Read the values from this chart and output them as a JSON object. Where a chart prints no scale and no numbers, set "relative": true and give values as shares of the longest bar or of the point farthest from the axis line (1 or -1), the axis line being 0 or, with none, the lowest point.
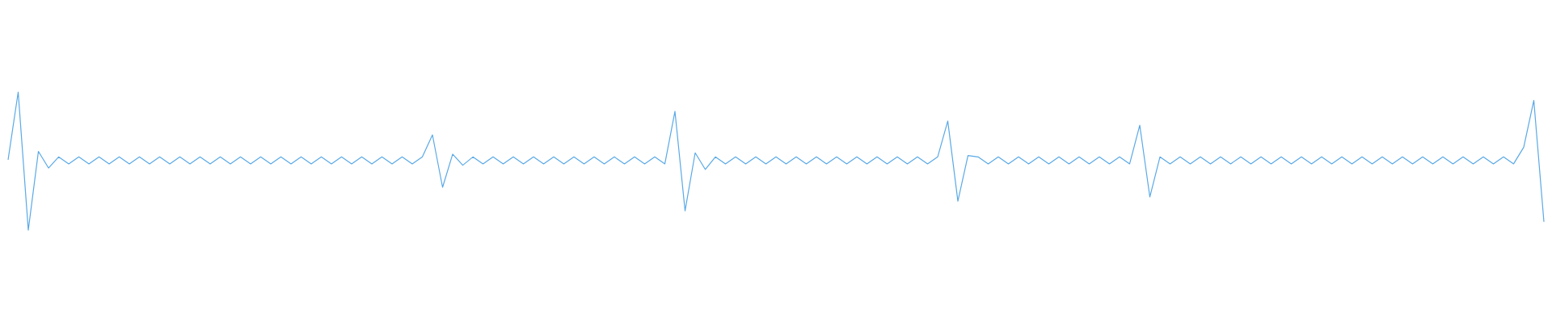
{
  "chart_data": {
    "type": "line",
    "relative": true,
    "color": "#5aa9e6",
    "categories": [
      null,
      null,
      null,
      null,
      null,
      null,
      null,
      null,
      null,
      null,
      null,
      null,
      null,
      null,
      null,
      null,
      null,
      null,
      null,
      null,
      null,
      null,
      null,
      null,
      null,
      null,
      null,
      null,
      null,
      null,
      null,
      null,
      null,
      null,
      null,
      null,
      null,
      null,
      null,
      null,
      null,
      null,
      null,
      null,
      null,
      null,
      null,
      null,
      null,
      null,
      null,
      null,
      null,
      null,
      null,
      null,
      null,
      null,
      null,
      null,
      null,
      null,
      null,
      null,
      null,
      null,
      null,
      null,
      null,
      null,
      null,
      null,
      null,
      null,
      null,
      null,
      null,
      null,
      null,
      null,
      null,
      null,
      null,
      null,
      null,
      null,
      null,
      null,
      null,
      null,
      null,
      null,
      null,
      null,
      null,
      null,
      null,
      null,
      null,
      null,
      null,
      null,
      null,
      null,
      null,
      null,
      null,
      null,
      null,
      null,
      null,
      null,
      null,
      null,
      null,
      null,
      null,
      null,
      null,
      null,
      null,
      null,
      null,
      null,
      null,
      null,
      null,
      null,
      null,
      null,
      null,
      null,
      null,
      null,
      null,
      null,
      null,
      null,
      null,
      null,
      null,
      null,
      null,
      null,
      null,
      null,
      null,
      null,
      null,
      null,
      null,
      null,
      null
    ],
    "values": [
      0.51,
      1,
      0,
      0.57,
      0.45,
      0.53,
      0.48,
      0.53,
      0.48,
      0.53,
      0.48,
      0.53,
      0.48,
      0.53,
      0.48,
      0.53,
      0.48,
      0.53,
      0.48,
      0.53,
      0.48,
      0.53,
      0.48,
      0.53,
      0.48,
      0.53,
      0.48,
      0.53,
      0.48,
      0.53,
      0.48,
      0.53,
      0.48,
      0.53,
      0.48,
      0.53,
      0.48,
      0.53,
      0.48,
      0.53,
      0.48,
      0.53,
      0.69,
      0.31,
      0.55,
      0.47,
      0.53,
      0.48,
      0.53,
      0.48,
      0.53,
      0.48,
      0.53,
      0.48,
      0.53,
      0.48,
      0.53,
      0.48,
      0.53,
      0.48,
      0.53,
      0.48,
      0.53,
      0.48,
      0.53,
      0.48,
      0.86,
      0.14,
      0.56,
      0.44,
      0.53,
      0.48,
      0.53,
      0.48,
      0.53,
      0.48,
      0.53,
      0.48,
      0.53,
      0.48,
      0.53,
      0.48,
      0.53,
      0.48,
      0.53,
      0.48,
      0.53,
      0.48,
      0.53,
      0.48,
      0.53,
      0.48,
      0.53,
      0.79,
      0.21,
      0.54,
      0.53,
      0.48,
      0.53,
      0.48,
      0.53,
      0.48,
      0.53,
      0.48,
      0.53,
      0.48,
      0.53,
      0.48,
      0.53,
      0.48,
      0.53,
      0.48,
      0.76,
      0.24,
      0.53,
      0.48,
      0.53,
      0.48,
      0.53,
      0.48,
      0.53,
      0.48,
      0.53,
      0.48,
      0.53,
      0.48,
      0.53,
      0.48,
      0.53,
      0.48,
      0.53,
      0.48,
      0.53,
      0.48,
      0.53,
      0.48,
      0.53,
      0.48,
      0.53,
      0.48,
      0.53,
      0.48,
      0.53,
      0.48,
      0.53,
      0.48,
      0.53,
      0.48,
      0.53,
      0.48,
      0.6,
      0.94,
      0.06
    ]
  }
}
